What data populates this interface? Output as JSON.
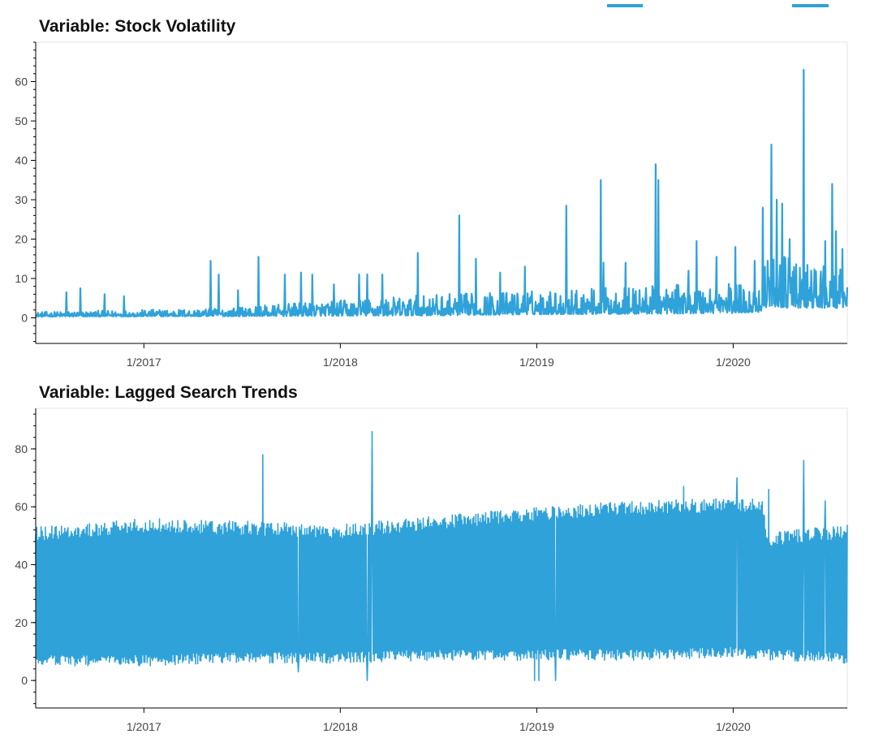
{
  "colors": {
    "series": "#30a2da",
    "axis": "#000000",
    "frame": "#e5e5e5",
    "text": "#444444"
  },
  "legend": {
    "position": "top-right",
    "swatches": 2
  },
  "chart_data": [
    {
      "type": "line",
      "title": "Variable: Stock Volatility",
      "xlabel": "",
      "ylabel": "",
      "x_range": [
        "2016-06-14",
        "2020-07-31"
      ],
      "ylim": [
        -6.5,
        70
      ],
      "yticks": [
        0,
        10,
        20,
        30,
        40,
        50,
        60
      ],
      "xticks": [
        "1/2017",
        "1/2018",
        "1/2019",
        "1/2020"
      ],
      "grid": false,
      "baseline": {
        "x": [
          "2016-06-14",
          "2017-06-01",
          "2018-01-01",
          "2018-07-01",
          "2019-01-01",
          "2019-07-01",
          "2020-01-01",
          "2020-02-20",
          "2020-03-05",
          "2020-04-15",
          "2020-07-31"
        ],
        "low": [
          0.3,
          0.4,
          0.5,
          0.6,
          0.9,
          1.0,
          1.2,
          1.5,
          3.0,
          2.5,
          2.5
        ],
        "high": [
          1.5,
          2.5,
          4.5,
          6.0,
          7.0,
          8.0,
          9.0,
          8.0,
          18.0,
          15.0,
          12.0
        ]
      },
      "spikes": [
        {
          "x": "2016-08-10",
          "y": 6.5
        },
        {
          "x": "2016-09-05",
          "y": 7.5
        },
        {
          "x": "2016-10-20",
          "y": 6.0
        },
        {
          "x": "2016-11-25",
          "y": 5.5
        },
        {
          "x": "2017-05-05",
          "y": 14.5
        },
        {
          "x": "2017-05-20",
          "y": 11.0
        },
        {
          "x": "2017-06-25",
          "y": 7.0
        },
        {
          "x": "2017-08-02",
          "y": 15.5
        },
        {
          "x": "2017-09-20",
          "y": 11.0
        },
        {
          "x": "2017-10-20",
          "y": 11.5
        },
        {
          "x": "2017-11-10",
          "y": 11.0
        },
        {
          "x": "2017-12-20",
          "y": 8.5
        },
        {
          "x": "2018-02-05",
          "y": 11.0
        },
        {
          "x": "2018-02-20",
          "y": 11.0
        },
        {
          "x": "2018-03-20",
          "y": 11.0
        },
        {
          "x": "2018-05-25",
          "y": 16.5
        },
        {
          "x": "2018-08-10",
          "y": 26.0
        },
        {
          "x": "2018-09-10",
          "y": 15.0
        },
        {
          "x": "2018-10-25",
          "y": 11.5
        },
        {
          "x": "2018-12-10",
          "y": 13.0
        },
        {
          "x": "2019-02-25",
          "y": 28.5
        },
        {
          "x": "2019-04-30",
          "y": 35.0
        },
        {
          "x": "2019-05-05",
          "y": 14.0
        },
        {
          "x": "2019-06-15",
          "y": 14.0
        },
        {
          "x": "2019-08-10",
          "y": 39.0
        },
        {
          "x": "2019-08-15",
          "y": 35.0
        },
        {
          "x": "2019-10-10",
          "y": 12.0
        },
        {
          "x": "2019-10-25",
          "y": 19.5
        },
        {
          "x": "2019-12-01",
          "y": 15.5
        },
        {
          "x": "2020-01-05",
          "y": 18.0
        },
        {
          "x": "2020-02-10",
          "y": 14.5
        },
        {
          "x": "2020-02-25",
          "y": 28.0
        },
        {
          "x": "2020-03-12",
          "y": 44.0
        },
        {
          "x": "2020-03-22",
          "y": 30.0
        },
        {
          "x": "2020-04-01",
          "y": 29.0
        },
        {
          "x": "2020-04-15",
          "y": 20.0
        },
        {
          "x": "2020-05-11",
          "y": 63.0
        },
        {
          "x": "2020-05-25",
          "y": 12.0
        },
        {
          "x": "2020-06-20",
          "y": 19.5
        },
        {
          "x": "2020-07-03",
          "y": 34.0
        },
        {
          "x": "2020-07-10",
          "y": 22.0
        },
        {
          "x": "2020-07-22",
          "y": 17.5
        }
      ]
    },
    {
      "type": "line",
      "title": "Variable: Lagged Search Trends",
      "xlabel": "",
      "ylabel": "",
      "x_range": [
        "2016-06-14",
        "2020-07-31"
      ],
      "ylim": [
        -9.5,
        94
      ],
      "yticks": [
        0,
        20,
        40,
        60,
        80
      ],
      "xticks": [
        "1/2017",
        "1/2018",
        "1/2019",
        "1/2020"
      ],
      "grid": false,
      "band": {
        "x": [
          "2016-06-14",
          "2017-01-01",
          "2017-07-01",
          "2018-01-01",
          "2018-07-01",
          "2019-01-01",
          "2019-07-01",
          "2020-01-01",
          "2020-02-25",
          "2020-03-05",
          "2020-07-31"
        ],
        "low": [
          6,
          6,
          7,
          7,
          8,
          8,
          8,
          9,
          8,
          8,
          7
        ],
        "high": [
          52,
          55,
          54,
          53,
          56,
          59,
          61,
          62,
          62,
          50,
          53
        ]
      },
      "spikes": [
        {
          "x": "2017-08-10",
          "y": 78
        },
        {
          "x": "2018-03-01",
          "y": 86
        },
        {
          "x": "2019-10-01",
          "y": 67
        },
        {
          "x": "2020-01-08",
          "y": 70
        },
        {
          "x": "2020-03-07",
          "y": 66
        },
        {
          "x": "2020-05-11",
          "y": 76
        },
        {
          "x": "2020-06-20",
          "y": 62
        }
      ],
      "dips": [
        {
          "x": "2017-10-15",
          "y": 3
        },
        {
          "x": "2018-02-20",
          "y": 0
        },
        {
          "x": "2018-12-28",
          "y": 0
        },
        {
          "x": "2019-01-05",
          "y": 0
        },
        {
          "x": "2019-02-05",
          "y": 0
        }
      ]
    }
  ]
}
